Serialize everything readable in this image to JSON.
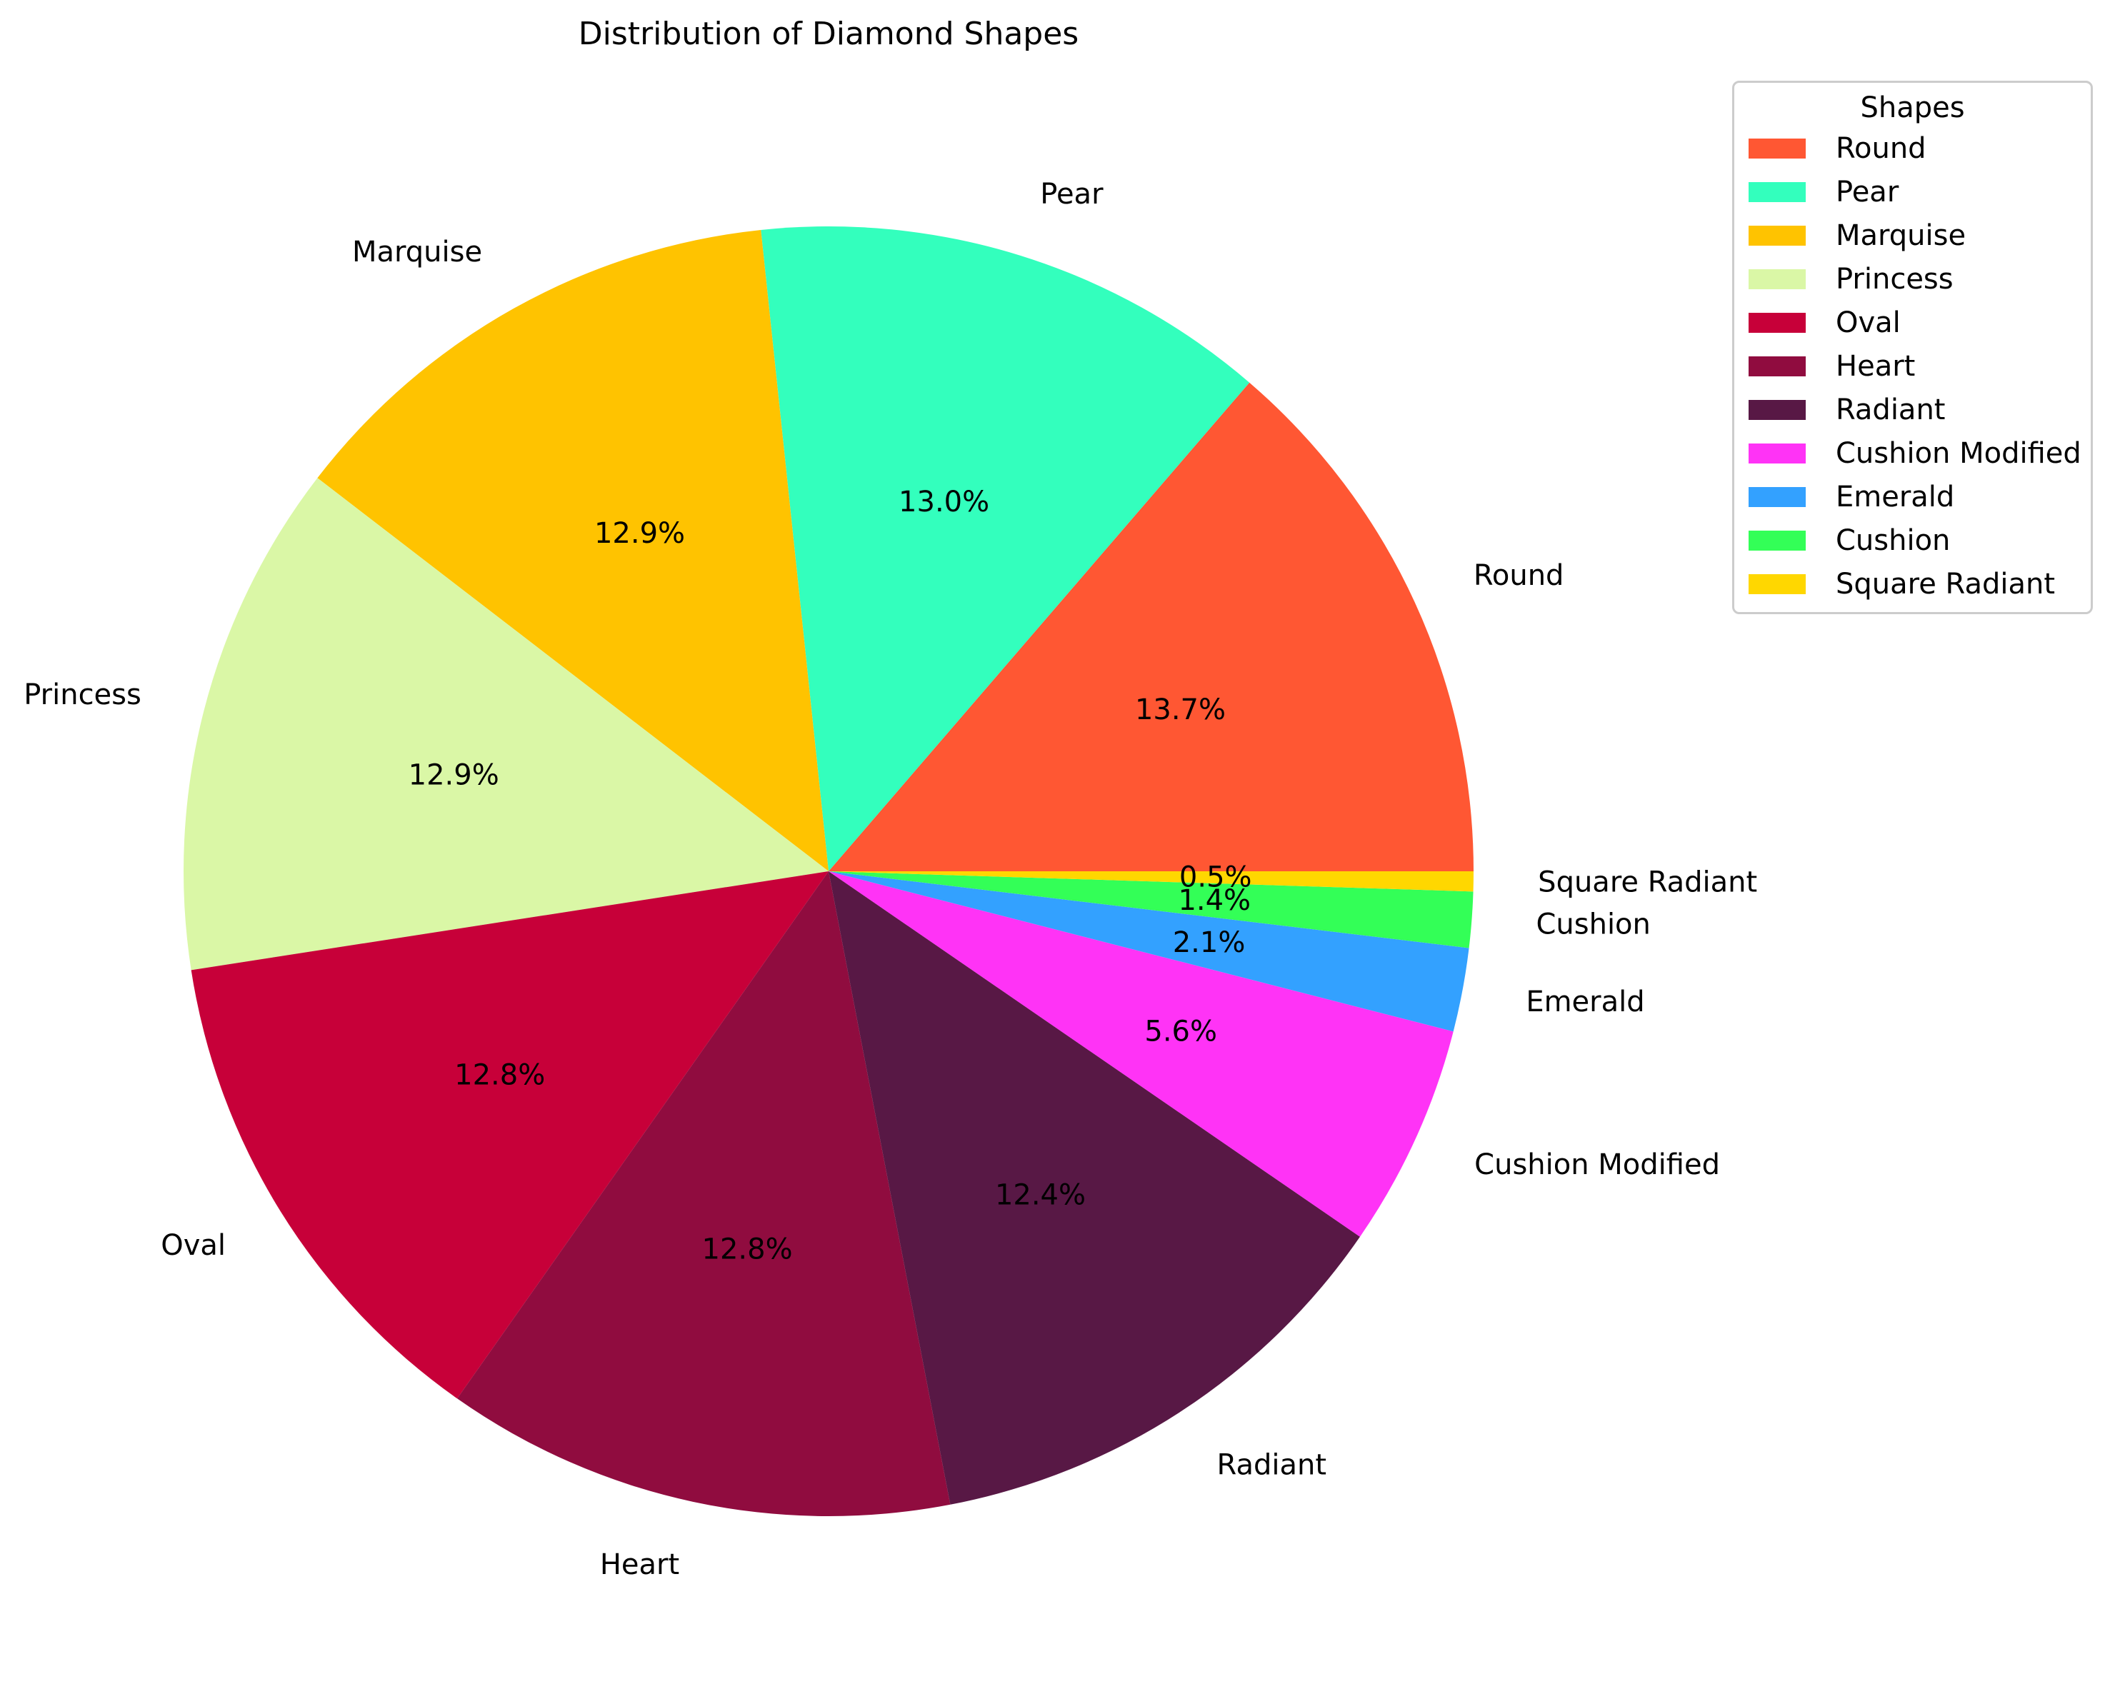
{
  "chart_data": {
    "type": "pie",
    "title": "Distribution of Diamond Shapes",
    "legend": {
      "title": "Shapes",
      "placement": "upper right"
    },
    "slices": [
      {
        "label": "Round",
        "value": 13.7,
        "pct_label": "13.7%",
        "color": "#FF5733"
      },
      {
        "label": "Pear",
        "value": 13.0,
        "pct_label": "13.0%",
        "color": "#33FFBD"
      },
      {
        "label": "Marquise",
        "value": 12.9,
        "pct_label": "12.9%",
        "color": "#FFC300"
      },
      {
        "label": "Princess",
        "value": 12.9,
        "pct_label": "12.9%",
        "color": "#DAF7A6"
      },
      {
        "label": "Oval",
        "value": 12.8,
        "pct_label": "12.8%",
        "color": "#C70039"
      },
      {
        "label": "Heart",
        "value": 12.8,
        "pct_label": "12.8%",
        "color": "#900C3F"
      },
      {
        "label": "Radiant",
        "value": 12.4,
        "pct_label": "12.4%",
        "color": "#581845"
      },
      {
        "label": "Cushion Modified",
        "value": 5.6,
        "pct_label": "5.6%",
        "color": "#FF33F6"
      },
      {
        "label": "Emerald",
        "value": 2.1,
        "pct_label": "2.1%",
        "color": "#33A1FF"
      },
      {
        "label": "Cushion",
        "value": 1.4,
        "pct_label": "1.4%",
        "color": "#33FF57"
      },
      {
        "label": "Square Radiant",
        "value": 0.5,
        "pct_label": "0.5%",
        "color": "#FFD700"
      }
    ]
  }
}
